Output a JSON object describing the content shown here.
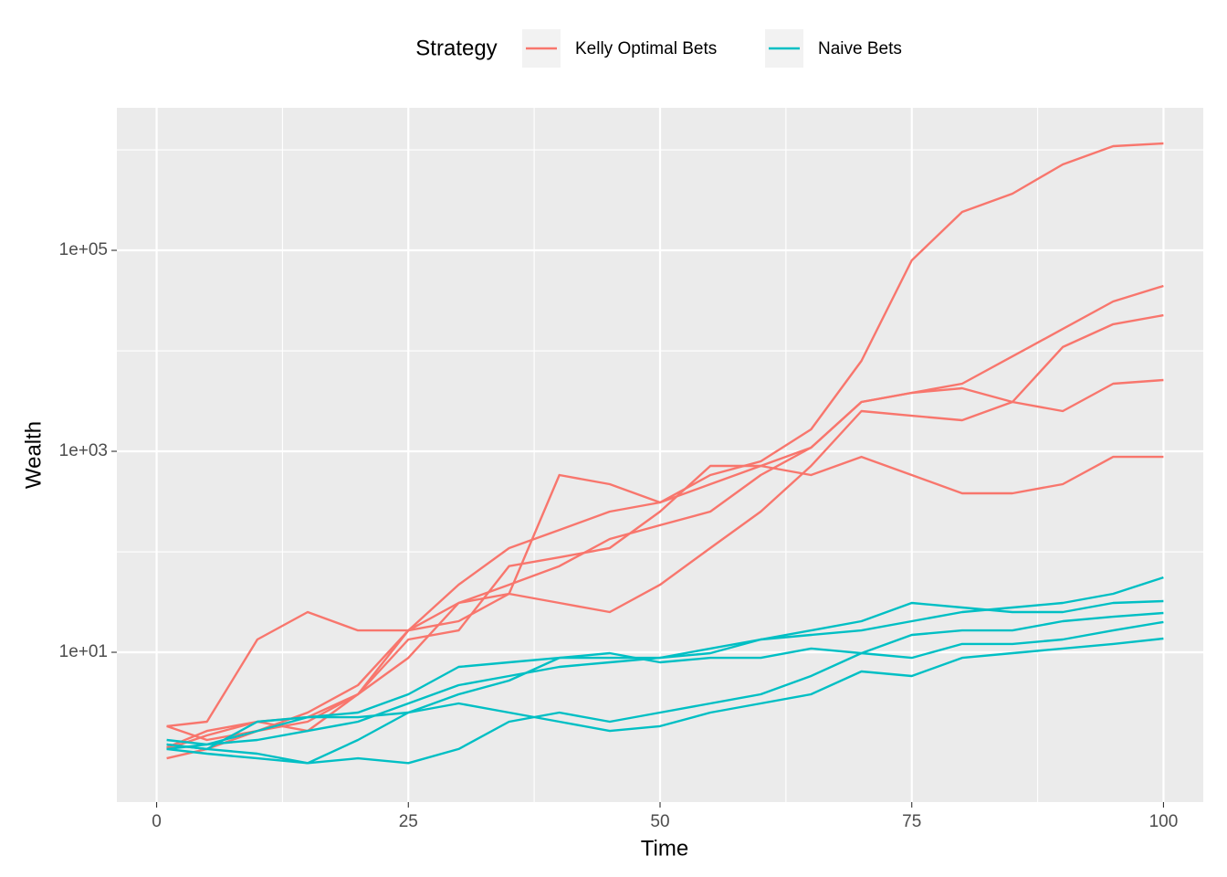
{
  "chart_data": {
    "type": "line",
    "x_label": "Time",
    "y_label": "Wealth",
    "legend_title": "Strategy",
    "legend_position": "top",
    "log_y": true,
    "grid": true,
    "x": [
      1,
      5,
      10,
      15,
      20,
      25,
      30,
      35,
      40,
      45,
      50,
      55,
      60,
      65,
      70,
      75,
      80,
      85,
      90,
      95,
      100
    ],
    "xlim": [
      -3.95,
      103.95
    ],
    "xticks": [
      0,
      25,
      50,
      75,
      100
    ],
    "x_minor_grid": [
      12.5,
      37.5,
      62.5,
      87.5
    ],
    "ylim": [
      0.323,
      2620000
    ],
    "yticks": [
      {
        "value": 10,
        "label": "1e+01"
      },
      {
        "value": 1000,
        "label": "1e+03"
      },
      {
        "value": 100000,
        "label": "1e+05"
      }
    ],
    "y_minor_grid": [
      100,
      10000,
      1000000
    ],
    "series": [
      {
        "name": "Kelly Optimal Bets",
        "color": "#F8766D",
        "values": [
          [
            1.13,
            1.65,
            2.04,
            2.26,
            3.82,
            16.5,
            47.1,
            108.7,
            165,
            251,
            310,
            581,
            794,
            1652,
            7943,
            79430,
            241000,
            366000,
            716000,
            1087000,
            1158000
          ],
          [
            1.84,
            1.34,
            1.65,
            2.04,
            3.82,
            8.8,
            31,
            47,
            72,
            134,
            184,
            251,
            581,
            1087,
            3100,
            3820,
            4710,
            8810,
            16500,
            31000,
            44200
          ],
          [
            0.88,
            1.09,
            1.65,
            2.51,
            4.71,
            16.5,
            20.4,
            38.2,
            31,
            25.1,
            47,
            109,
            251,
            716,
            2510,
            2260,
            2040,
            3100,
            10900,
            18400,
            22600
          ],
          [
            1.84,
            2.04,
            13.4,
            25.1,
            16.5,
            16.5,
            31,
            38.2,
            581,
            471,
            310,
            471,
            716,
            1087,
            3100,
            3820,
            4240,
            3100,
            2510,
            4710,
            5120
          ],
          [
            1.09,
            1.49,
            2.04,
            1.65,
            3.82,
            13.4,
            16.5,
            72,
            88,
            109,
            251,
            716,
            716,
            581,
            881,
            581,
            382,
            382,
            471,
            881,
            881
          ]
        ]
      },
      {
        "name": "Naive Bets",
        "color": "#00BFC4",
        "values": [
          [
            1.09,
            1.21,
            1.34,
            1.65,
            2.04,
            3.1,
            4.71,
            5.81,
            7.16,
            7.94,
            8.8,
            9.8,
            13.4,
            14.9,
            16.5,
            20.4,
            25.1,
            27.9,
            31,
            38.2,
            55.6
          ],
          [
            1.21,
            1.09,
            2.04,
            2.26,
            2.51,
            3.82,
            7.16,
            7.94,
            8.8,
            8.8,
            8.8,
            10.9,
            13.4,
            16.5,
            20.4,
            31,
            27.9,
            25.1,
            25.1,
            31,
            32.3
          ],
          [
            1.21,
            1.09,
            0.98,
            0.79,
            0.88,
            0.79,
            1.09,
            2.04,
            2.51,
            2.04,
            2.51,
            3.1,
            3.82,
            5.81,
            9.8,
            14.9,
            16.5,
            16.5,
            20.4,
            22.6,
            24.6
          ],
          [
            1.09,
            0.98,
            0.88,
            0.79,
            1.34,
            2.51,
            3.82,
            5.23,
            8.8,
            9.8,
            7.94,
            8.8,
            8.8,
            10.9,
            9.8,
            8.8,
            12.1,
            12.1,
            13.4,
            16.5,
            20.0
          ],
          [
            1.34,
            1.21,
            1.65,
            2.26,
            2.26,
            2.51,
            3.1,
            2.51,
            2.04,
            1.65,
            1.84,
            2.51,
            3.1,
            3.82,
            6.44,
            5.81,
            8.8,
            9.8,
            10.9,
            12.1,
            13.7
          ]
        ]
      }
    ]
  }
}
